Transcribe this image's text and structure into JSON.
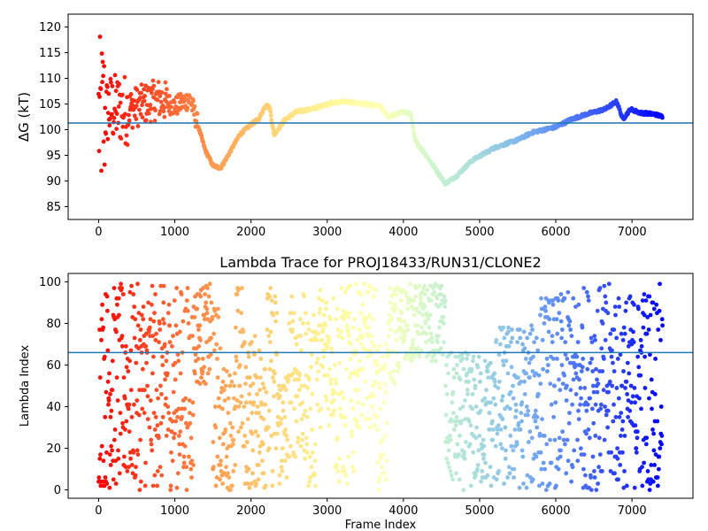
{
  "chart_data": [
    {
      "type": "scatter",
      "title": "",
      "ylabel": "ΔG (kT)",
      "xlabel": "",
      "xlim": [
        -400,
        7800
      ],
      "ylim": [
        82.5,
        122.5
      ],
      "xticks": [
        "0",
        "1000",
        "2000",
        "3000",
        "4000",
        "5000",
        "6000",
        "7000"
      ],
      "yticks": [
        "85",
        "90",
        "95",
        "100",
        "105",
        "110",
        "115",
        "120"
      ],
      "hline": 101.3,
      "hline_color": "#1f77b4",
      "colormap": "rainbow (red at frame 0 → violet at last frame)",
      "n_frames": 7400,
      "trace_keypoints": [
        [
          0,
          102
        ],
        [
          150,
          104
        ],
        [
          400,
          104
        ],
        [
          600,
          105
        ],
        [
          800,
          106
        ],
        [
          1000,
          104.5
        ],
        [
          1200,
          106
        ],
        [
          1300,
          101
        ],
        [
          1400,
          96
        ],
        [
          1500,
          93
        ],
        [
          1600,
          92.5
        ],
        [
          1700,
          95
        ],
        [
          1850,
          99
        ],
        [
          2000,
          101
        ],
        [
          2100,
          102
        ],
        [
          2200,
          105
        ],
        [
          2250,
          104
        ],
        [
          2300,
          99
        ],
        [
          2450,
          102
        ],
        [
          2600,
          103.5
        ],
        [
          2800,
          104
        ],
        [
          3000,
          105
        ],
        [
          3200,
          105.5
        ],
        [
          3500,
          105
        ],
        [
          3700,
          104.5
        ],
        [
          3800,
          102.5
        ],
        [
          4000,
          103.5
        ],
        [
          4100,
          103
        ],
        [
          4150,
          98
        ],
        [
          4300,
          95
        ],
        [
          4550,
          89.5
        ],
        [
          4700,
          91
        ],
        [
          4900,
          94
        ],
        [
          5200,
          96.5
        ],
        [
          5500,
          98
        ],
        [
          5700,
          99.5
        ],
        [
          6000,
          100.5
        ],
        [
          6200,
          102
        ],
        [
          6400,
          103
        ],
        [
          6650,
          104
        ],
        [
          6800,
          105.5
        ],
        [
          6880,
          102
        ],
        [
          6980,
          104
        ],
        [
          7100,
          103.3
        ],
        [
          7300,
          103
        ],
        [
          7400,
          102.5
        ]
      ]
    },
    {
      "type": "scatter",
      "title": "Lambda Trace for PROJ18433/RUN31/CLONE2",
      "xlabel": "Frame Index",
      "ylabel": "Lambda Index",
      "xlim": [
        -400,
        7800
      ],
      "ylim": [
        -4,
        104
      ],
      "xticks": [
        "0",
        "1000",
        "2000",
        "3000",
        "4000",
        "5000",
        "6000",
        "7000"
      ],
      "yticks": [
        "0",
        "20",
        "40",
        "60",
        "80",
        "100"
      ],
      "hline": 66,
      "hline_color": "#1f77b4",
      "colormap": "rainbow (red at frame 0 → violet at last frame)",
      "n_frames": 7400,
      "value_range": [
        0,
        99
      ]
    }
  ]
}
